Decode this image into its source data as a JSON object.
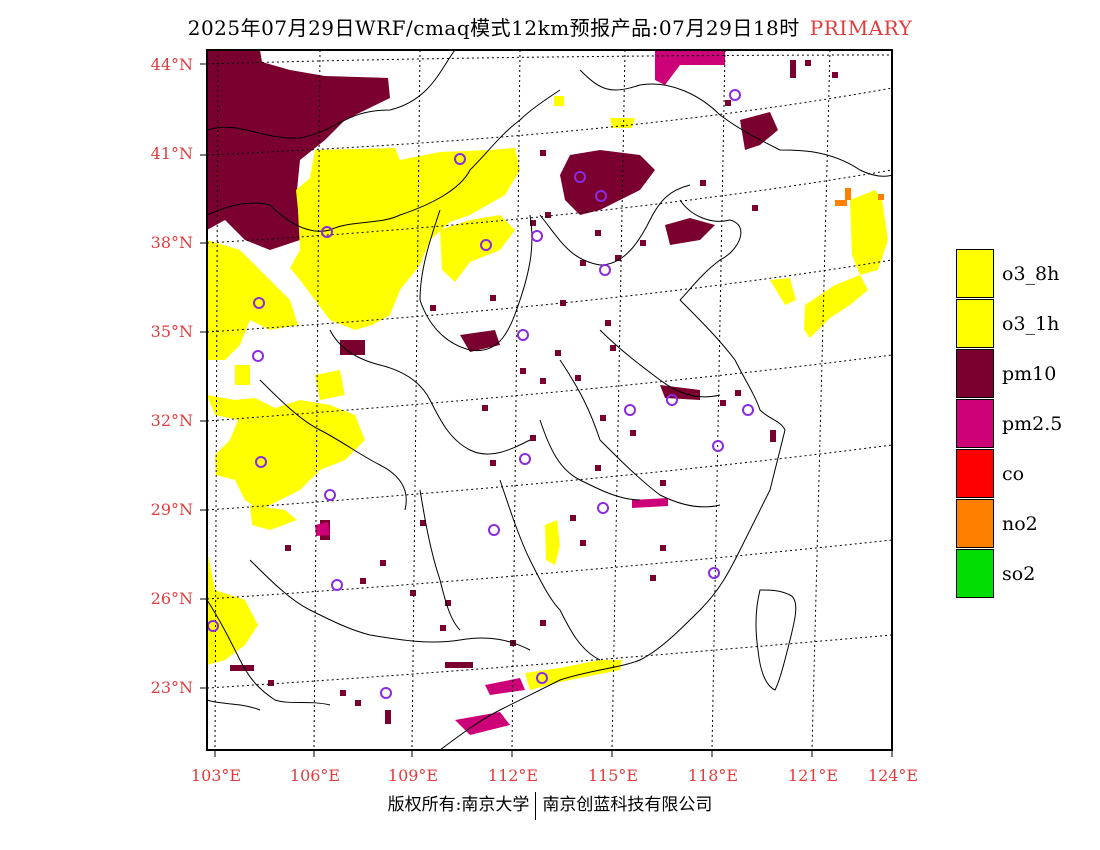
{
  "title": "2025年07月29日WRF/cmaq模式12km预报产品:07月29日18时",
  "title_tag": "PRIMARY",
  "lat_labels": [
    "44°N",
    "41°N",
    "38°N",
    "35°N",
    "32°N",
    "29°N",
    "26°N",
    "23°N"
  ],
  "lon_labels": [
    "103°E",
    "106°E",
    "109°E",
    "112°E",
    "115°E",
    "118°E",
    "121°E",
    "124°E"
  ],
  "legend": [
    {
      "label": "o3_8h",
      "color": "#ffff00"
    },
    {
      "label": "o3_1h",
      "color": "#ffff00"
    },
    {
      "label": "pm10",
      "color": "#7a0030"
    },
    {
      "label": "pm2.5",
      "color": "#cc0077"
    },
    {
      "label": "co",
      "color": "#ff0000"
    },
    {
      "label": "no2",
      "color": "#ff8000"
    },
    {
      "label": "so2",
      "color": "#00dd00"
    }
  ],
  "footer_left": "版权所有:南京大学",
  "footer_right": "南京创蓝科技有限公司"
}
